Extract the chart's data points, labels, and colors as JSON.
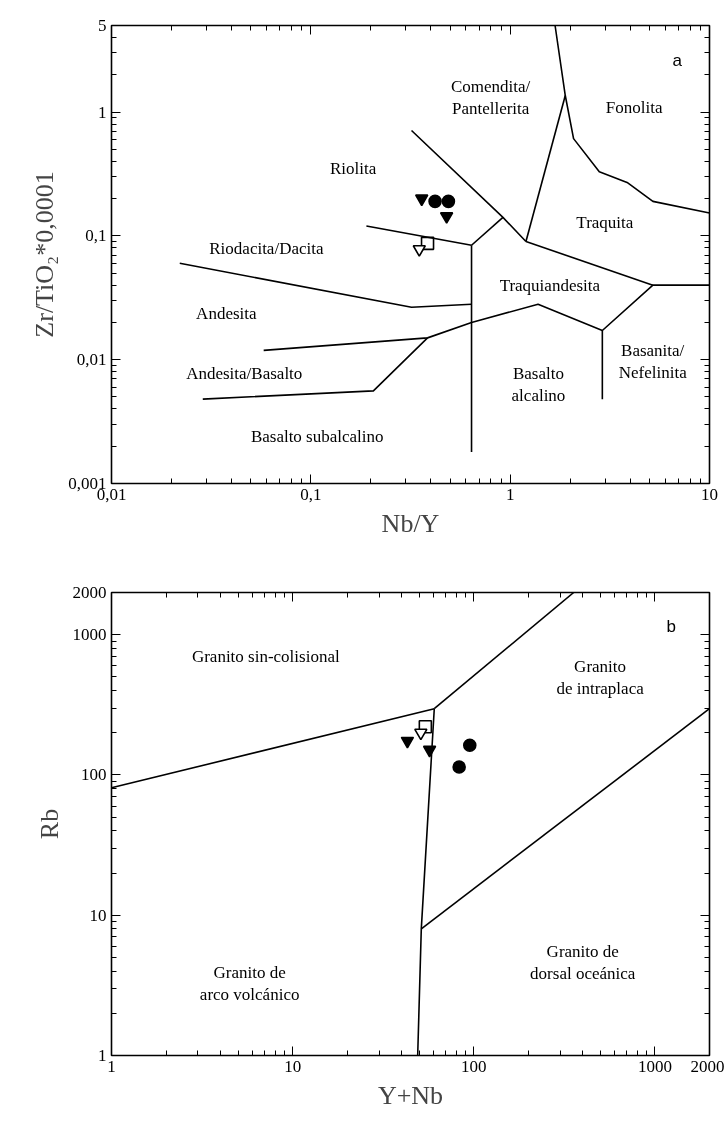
{
  "chart_data": [
    {
      "type": "scatter",
      "xlabel": "Nb/Y",
      "ylabel": "Zr/TiO₂*0,0001",
      "log": "xy",
      "grid": false,
      "xlim": [
        0.01,
        10
      ],
      "ylim": [
        0.001,
        5
      ],
      "xticks": [
        {
          "value": 0.01,
          "label": "0,01"
        },
        {
          "value": 0.1,
          "label": "0,1"
        },
        1,
        10
      ],
      "yticks": [
        {
          "value": 0.001,
          "label": "0,001"
        },
        {
          "value": 0.01,
          "label": "0,01"
        },
        {
          "value": 0.1,
          "label": "0,1"
        },
        1,
        5
      ],
      "series": [
        {
          "marker": "triangle",
          "color": "#000000",
          "x": [
            0.36,
            0.48
          ],
          "values": [
            0.2,
            0.144
          ]
        },
        {
          "marker": "circle",
          "color": "#000000",
          "x": [
            0.42,
            0.49
          ],
          "values": [
            0.19,
            0.19
          ]
        },
        {
          "marker": "square",
          "color": "#ffffff",
          "x": [
            0.385
          ],
          "values": [
            0.087
          ]
        },
        {
          "marker": "triangle",
          "color": "#ffffff",
          "x": [
            0.35
          ],
          "values": [
            0.078
          ]
        },
        {
          "type": "line",
          "color": "#000000",
          "x": [
            0.32,
            0.92,
            1.2
          ],
          "values": [
            0.71,
            0.141,
            0.09
          ]
        },
        {
          "type": "line",
          "color": "#000000",
          "x": [
            0.92,
            0.64
          ],
          "values": [
            0.141,
            0.084
          ]
        },
        {
          "type": "line",
          "color": "#000000",
          "x": [
            0.19,
            0.64
          ],
          "values": [
            0.12,
            0.084
          ]
        },
        {
          "type": "line",
          "color": "#000000",
          "x": [
            0.64,
            0.64
          ],
          "values": [
            0.084,
            0.0018
          ]
        },
        {
          "type": "line",
          "color": "#000000",
          "x": [
            0.022,
            0.32,
            0.64
          ],
          "values": [
            0.06,
            0.0265,
            0.028
          ]
        },
        {
          "type": "line",
          "color": "#000000",
          "x": [
            0.058,
            0.385,
            0.64,
            1.38,
            2.9,
            5.2,
            10
          ],
          "values": [
            0.0119,
            0.015,
            0.02,
            0.028,
            0.0172,
            0.04,
            0.04
          ]
        },
        {
          "type": "line",
          "color": "#000000",
          "x": [
            0.0287,
            0.206,
            0.385
          ],
          "values": [
            0.0048,
            0.0056,
            0.015
          ]
        },
        {
          "type": "line",
          "color": "#000000",
          "x": [
            2.9,
            2.9
          ],
          "values": [
            0.0172,
            0.0048
          ]
        },
        {
          "type": "line",
          "color": "#000000",
          "x": [
            1.2,
            5.2
          ],
          "values": [
            0.09,
            0.04
          ]
        },
        {
          "type": "line",
          "color": "#000000",
          "x": [
            1.2,
            1.89
          ],
          "values": [
            0.09,
            1.36
          ]
        },
        {
          "type": "line",
          "color": "#000000",
          "x": [
            1.68,
            1.89,
            2.08,
            2.8,
            3.86,
            5.2,
            10
          ],
          "values": [
            5,
            1.36,
            0.61,
            0.33,
            0.27,
            0.19,
            0.153
          ]
        }
      ],
      "annotations": [
        "Comendita/\nPantellerita",
        "Riolita",
        "Fonolita",
        "Traquita",
        "Riodacita/Dacita",
        "Traquiandesita",
        "Andesita",
        "Andesita/Basalto",
        "Basalto\nalcalino",
        "Basanita/\nNefelinita",
        "Basalto subalcalino",
        "a"
      ]
    },
    {
      "type": "scatter",
      "xlabel": "Y+Nb",
      "ylabel": "Rb",
      "log": "xy",
      "grid": false,
      "xlim": [
        1,
        2000
      ],
      "ylim": [
        1,
        2000
      ],
      "xticks": [
        1,
        10,
        100,
        1000,
        2000
      ],
      "yticks": [
        1,
        10,
        100,
        1000,
        2000
      ],
      "series": [
        {
          "marker": "triangle",
          "color": "#000000",
          "x": [
            43,
            57
          ],
          "values": [
            175,
            151
          ]
        },
        {
          "marker": "circle",
          "color": "#000000",
          "x": [
            95,
            83
          ],
          "values": [
            163,
            114
          ]
        },
        {
          "marker": "square",
          "color": "#ffffff",
          "x": [
            54
          ],
          "values": [
            221
          ]
        },
        {
          "marker": "triangle",
          "color": "#ffffff",
          "x": [
            51
          ],
          "values": [
            200
          ]
        },
        {
          "type": "line",
          "color": "#000000",
          "x": [
            1,
            60.5
          ],
          "values": [
            81,
            297
          ]
        },
        {
          "type": "line",
          "color": "#000000",
          "x": [
            60.5,
            356
          ],
          "values": [
            297,
            2000
          ]
        },
        {
          "type": "line",
          "color": "#000000",
          "x": [
            60.5,
            51.3,
            49
          ],
          "values": [
            297,
            8,
            1
          ]
        },
        {
          "type": "line",
          "color": "#000000",
          "x": [
            51.3,
            2000
          ],
          "values": [
            8,
            297
          ]
        }
      ],
      "annotations": [
        "Granito sin-colisional",
        "Granito\nde intraplaca",
        "Granito de\narco volcánico",
        "Granito de\ndorsal oceánica",
        "b"
      ]
    }
  ]
}
